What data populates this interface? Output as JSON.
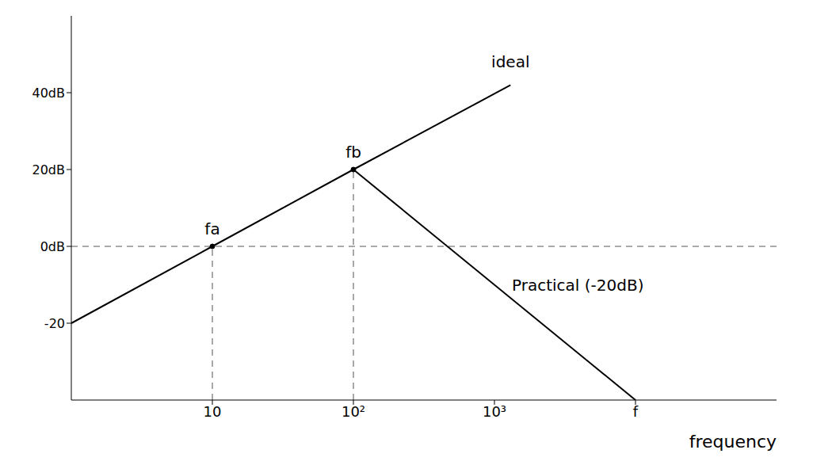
{
  "chart_data": {
    "type": "line",
    "x_label": "frequency",
    "x": [
      1,
      10,
      100,
      1300,
      10000
    ],
    "series": [
      {
        "name": "ideal",
        "color": "#000000",
        "values": [
          -20,
          0,
          20,
          42,
          null
        ]
      },
      {
        "name": "Practical (-20dB)",
        "color": "#000000",
        "values": [
          null,
          null,
          20,
          null,
          -40
        ]
      }
    ],
    "log": "x",
    "xlim": [
      1,
      100000
    ],
    "xticks": [
      10,
      {
        "value": 100,
        "label": "10²"
      },
      {
        "value": 1000,
        "label": "10³"
      },
      {
        "value": 10000,
        "label": "f"
      }
    ],
    "ylim": [
      -40,
      60
    ],
    "yticks": [
      {
        "value": -20,
        "label": "-20"
      },
      {
        "value": 0,
        "label": "0dB"
      },
      {
        "value": 20,
        "label": "20dB"
      },
      {
        "value": 40,
        "label": "40dB"
      }
    ],
    "reference_lines": {
      "y": [
        0
      ]
    },
    "points": [
      {
        "label": "fa",
        "x": 10,
        "y": 0
      },
      {
        "label": "fb",
        "x": 100,
        "y": 20
      }
    ],
    "grid": false
  }
}
